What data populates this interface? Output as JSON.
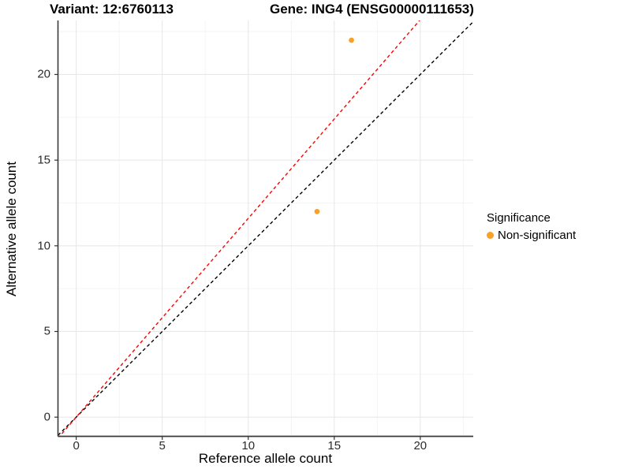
{
  "titles": {
    "left": "Variant: 12:6760113",
    "right": "Gene: ING4 (ENSG00000111653)"
  },
  "axes": {
    "x_label": "Reference allele count",
    "y_label": "Alternative allele count"
  },
  "legend": {
    "title": "Significance",
    "items": [
      {
        "label": "Non-significant",
        "color": "#F9A029",
        "marker": "circle-icon"
      }
    ]
  },
  "chart_data": {
    "type": "scatter",
    "title_left": "Variant: 12:6760113",
    "title_right": "Gene: ING4 (ENSG00000111653)",
    "xlabel": "Reference allele count",
    "ylabel": "Alternative allele count",
    "points": [
      {
        "x": 16,
        "y": 22,
        "series": "Non-significant"
      },
      {
        "x": 14,
        "y": 12,
        "series": "Non-significant"
      }
    ],
    "series": [
      {
        "name": "Non-significant",
        "color": "#F9A029"
      }
    ],
    "ablines": [
      {
        "name": "identity-line",
        "slope": 1.0,
        "intercept": 0,
        "color": "#000000",
        "style": "dashed"
      },
      {
        "name": "ratio-line",
        "slope": 1.16,
        "intercept": 0,
        "color": "#FF0000",
        "style": "dashed"
      }
    ],
    "x_ticks": [
      0,
      5,
      10,
      15,
      20
    ],
    "y_ticks": [
      0,
      5,
      10,
      15,
      20
    ],
    "x_minor_ticks": [
      2.5,
      7.5,
      12.5,
      17.5,
      22.5
    ],
    "y_minor_ticks": [
      2.5,
      7.5,
      12.5,
      17.5,
      22.5
    ],
    "x_range": [
      -1.06,
      23.08
    ],
    "y_range": [
      -1.12,
      23.15
    ],
    "grid": true,
    "legend_position": "right",
    "legend_title": "Significance",
    "point_radius": 3.4
  },
  "colors": {
    "background": "#FFFFFF",
    "grid_major": "#E8E8E8",
    "grid_minor": "#F3F3F3",
    "axis_line": "#3A3A3A",
    "tick_mark": "#333333",
    "point": "#F9A029",
    "identity_line": "#000000",
    "ratio_line": "#FF0000"
  }
}
